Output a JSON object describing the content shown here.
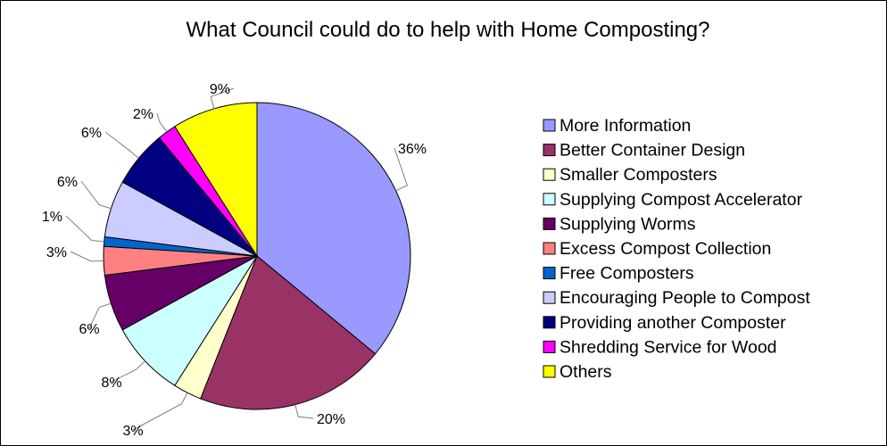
{
  "chart_data": {
    "type": "pie",
    "title": "What Council could do to help with Home Composting?",
    "legend_position": "right",
    "start_angle_deg": 0,
    "direction": "clockwise",
    "slices": [
      {
        "label": "More Information",
        "value": 36,
        "percent_label": "36%",
        "color": "#9999ff"
      },
      {
        "label": "Better Container Design",
        "value": 20,
        "percent_label": "20%",
        "color": "#993366"
      },
      {
        "label": "Smaller Composters",
        "value": 3,
        "percent_label": "3%",
        "color": "#ffffcc"
      },
      {
        "label": "Supplying Compost Accelerator",
        "value": 8,
        "percent_label": "8%",
        "color": "#ccffff"
      },
      {
        "label": "Supplying Worms",
        "value": 6,
        "percent_label": "6%",
        "color": "#660066"
      },
      {
        "label": "Excess Compost Collection",
        "value": 3,
        "percent_label": "3%",
        "color": "#ff8080"
      },
      {
        "label": "Free Composters",
        "value": 1,
        "percent_label": "1%",
        "color": "#0066cc"
      },
      {
        "label": "Encouraging People to Compost",
        "value": 6,
        "percent_label": "6%",
        "color": "#ccccff"
      },
      {
        "label": "Providing another Composter",
        "value": 6,
        "percent_label": "6%",
        "color": "#000080"
      },
      {
        "label": "Shredding Service for Wood",
        "value": 2,
        "percent_label": "2%",
        "color": "#ff00ff"
      },
      {
        "label": "Others",
        "value": 9,
        "percent_label": "9%",
        "color": "#ffff00"
      }
    ]
  }
}
